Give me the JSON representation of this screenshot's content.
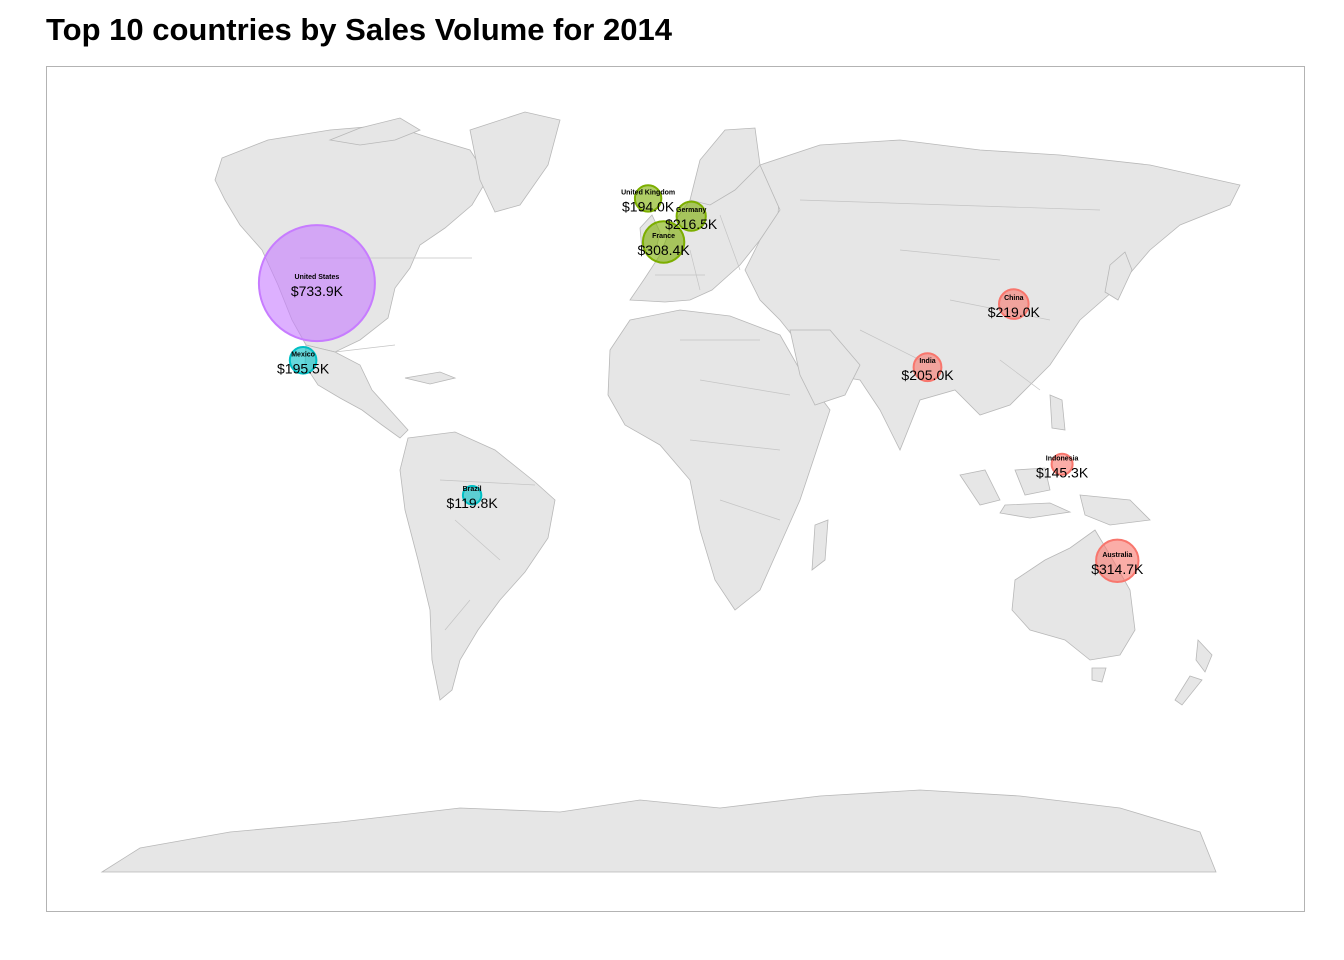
{
  "title": "Top 10 countries by Sales Volume for 2014",
  "colors": {
    "North America": "#c77cff",
    "LATAM": "#00bfc4",
    "Europe": "#7cae00",
    "APAC": "#f8766d",
    "land": "#e6e6e6",
    "land_border": "#b8b8b8"
  },
  "chart_data": {
    "type": "map-bubble",
    "title": "Top 10 countries by Sales Volume for 2014",
    "points": [
      {
        "country": "United States",
        "label": "$733.9K",
        "value_k": 733.9,
        "lon": -98,
        "lat": 39,
        "group": "North America"
      },
      {
        "country": "Australia",
        "label": "$314.7K",
        "value_k": 314.7,
        "lon": 134,
        "lat": -25,
        "group": "APAC"
      },
      {
        "country": "France",
        "label": "$308.4K",
        "value_k": 308.4,
        "lon": 2.5,
        "lat": 46.5,
        "group": "Europe"
      },
      {
        "country": "China",
        "label": "$219.0K",
        "value_k": 219.0,
        "lon": 104,
        "lat": 35,
        "group": "APAC"
      },
      {
        "country": "Germany",
        "label": "$216.5K",
        "value_k": 216.5,
        "lon": 10.5,
        "lat": 51,
        "group": "Europe"
      },
      {
        "country": "India",
        "label": "$205.0K",
        "value_k": 205.0,
        "lon": 79,
        "lat": 22,
        "group": "APAC"
      },
      {
        "country": "Mexico",
        "label": "$195.5K",
        "value_k": 195.5,
        "lon": -102,
        "lat": 23.5,
        "group": "LATAM"
      },
      {
        "country": "United Kingdom",
        "label": "$194.0K",
        "value_k": 194.0,
        "lon": -2,
        "lat": 54,
        "group": "Europe"
      },
      {
        "country": "Indonesia",
        "label": "$145.3K",
        "value_k": 145.3,
        "lon": 118,
        "lat": -2,
        "group": "APAC"
      },
      {
        "country": "Brazil",
        "label": "$119.8K",
        "value_k": 119.8,
        "lon": -53,
        "lat": -10,
        "group": "LATAM"
      }
    ]
  }
}
